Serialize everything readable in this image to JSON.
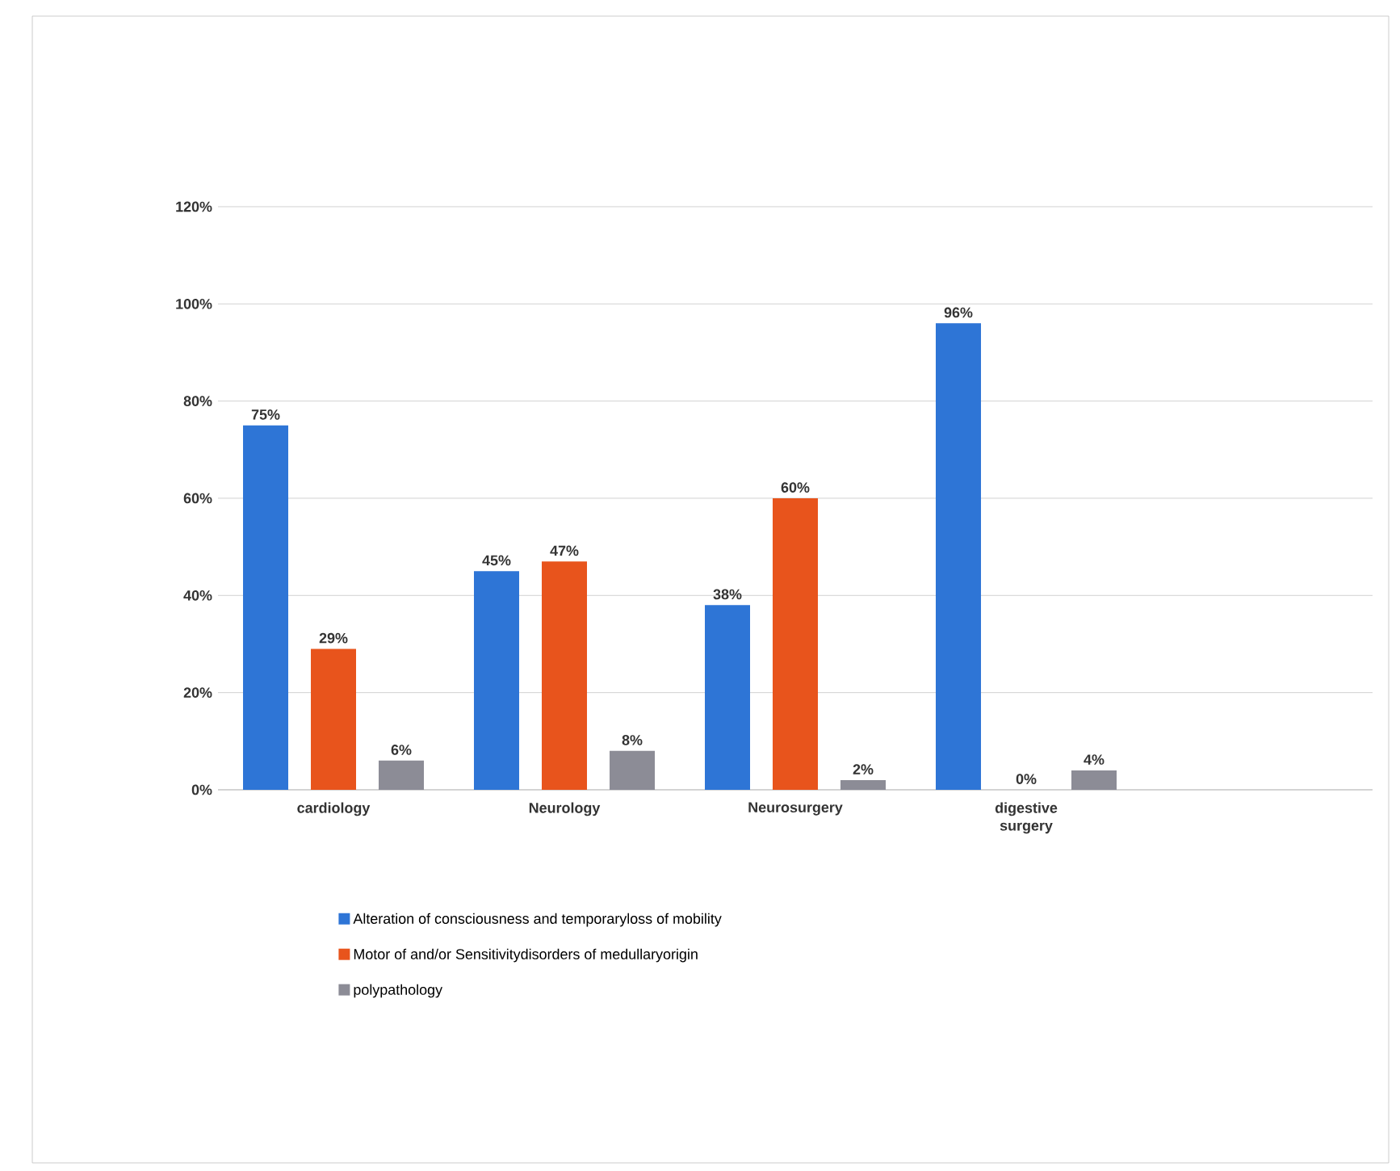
{
  "chart_data": {
    "type": "bar",
    "categories": [
      "cardiology",
      "Neurology",
      "Neurosurgery",
      "digestive surgery"
    ],
    "series": [
      {
        "name": "Alteration of consciousness and temporaryloss of mobility",
        "color": "#2e75d6",
        "values": [
          75,
          45,
          38,
          96
        ],
        "value_labels": [
          "75%",
          "45%",
          "38%",
          "96%"
        ]
      },
      {
        "name": "Motor of and/or Sensitivitydisorders of medullaryorigin",
        "color": "#e8541c",
        "values": [
          29,
          47,
          60,
          0
        ],
        "value_labels": [
          "29%",
          "47%",
          "60%",
          "0%"
        ]
      },
      {
        "name": "polypathology",
        "color": "#8c8c96",
        "values": [
          6,
          8,
          2,
          4
        ],
        "value_labels": [
          "6%",
          "8%",
          "2%",
          "4%"
        ]
      }
    ],
    "ylim": [
      0,
      120
    ],
    "yticks": [
      {
        "value": 0,
        "label": "0%"
      },
      {
        "value": 20,
        "label": "20%"
      },
      {
        "value": 40,
        "label": "40%"
      },
      {
        "value": 60,
        "label": "60%"
      },
      {
        "value": 80,
        "label": "80%"
      },
      {
        "value": 100,
        "label": "100%"
      },
      {
        "value": 120,
        "label": "120%"
      }
    ],
    "grid": "y",
    "legend": "bottom"
  }
}
